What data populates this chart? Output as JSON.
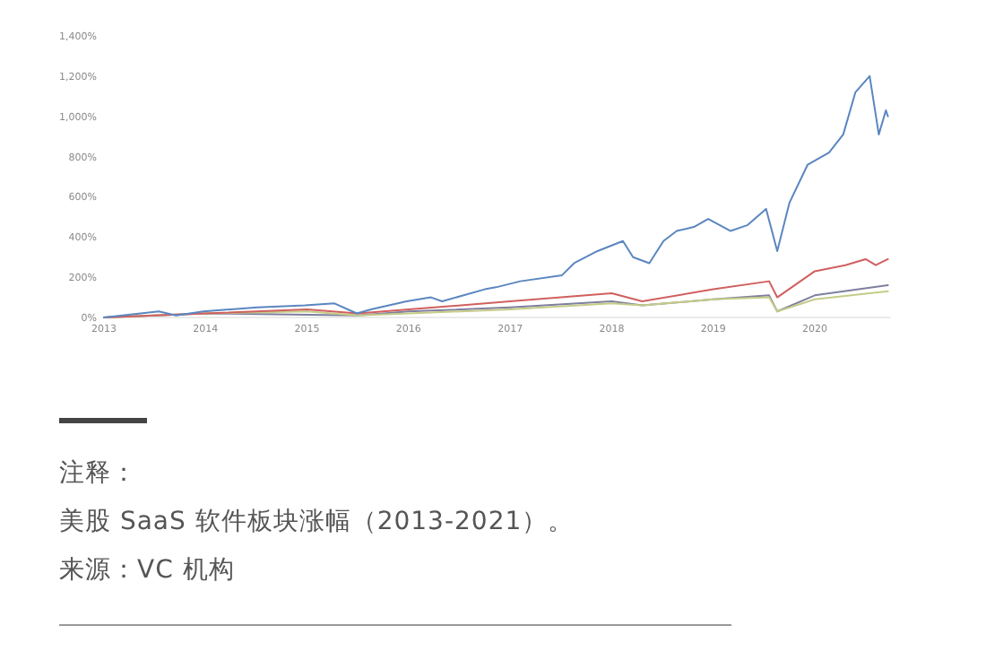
{
  "chart_data": {
    "type": "line",
    "xlim": [
      2013,
      2020.75
    ],
    "xticks": [
      2013,
      2014,
      2015,
      2016,
      2017,
      2018,
      2019,
      2020
    ],
    "ylim": [
      0,
      1400
    ],
    "yticks": [
      {
        "value": 0,
        "label": "0%"
      },
      {
        "value": 200,
        "label": "200%"
      },
      {
        "value": 400,
        "label": "400%"
      },
      {
        "value": 600,
        "label": "600%"
      },
      {
        "value": 800,
        "label": "800%"
      },
      {
        "value": 1000,
        "label": "1,000%"
      },
      {
        "value": 1200,
        "label": "1,200%"
      },
      {
        "value": 1400,
        "label": "1,400%"
      }
    ],
    "grid": false,
    "series": [
      {
        "color": "#5b86c0",
        "x": [
          2013,
          2013.54,
          2013.71,
          2013.98,
          2014.51,
          2014.98,
          2015.27,
          2015.49,
          2015.63,
          2015.98,
          2016.22,
          2016.33,
          2016.75,
          2016.86,
          2017.1,
          2017.51,
          2017.63,
          2017.86,
          2018.11,
          2018.21,
          2018.37,
          2018.51,
          2018.64,
          2018.81,
          2018.95,
          2019.17,
          2019.34,
          2019.52,
          2019.63,
          2019.75,
          2019.93,
          2020.14,
          2020.28,
          2020.4,
          2020.54,
          2020.63,
          2020.7,
          2020.72
        ],
        "values": [
          0,
          30,
          10,
          30,
          50,
          60,
          70,
          20,
          40,
          80,
          100,
          80,
          140,
          150,
          180,
          210,
          270,
          330,
          380,
          300,
          270,
          380,
          430,
          450,
          490,
          430,
          460,
          540,
          330,
          570,
          760,
          820,
          910,
          1120,
          1200,
          910,
          1030,
          1000
        ]
      },
      {
        "color": "#d0605f",
        "x": [
          2013,
          2014,
          2015,
          2015.5,
          2016,
          2017,
          2018,
          2018.3,
          2019,
          2019.55,
          2019.63,
          2020,
          2020.3,
          2020.5,
          2020.6,
          2020.72
        ],
        "values": [
          0,
          20,
          40,
          20,
          40,
          80,
          120,
          80,
          140,
          180,
          100,
          230,
          260,
          290,
          260,
          290
        ]
      },
      {
        "color": "#c5cc86",
        "x": [
          2013,
          2014,
          2015,
          2015.5,
          2016,
          2017,
          2018,
          2018.3,
          2019,
          2019.55,
          2019.63,
          2020,
          2020.72
        ],
        "values": [
          0,
          20,
          30,
          10,
          20,
          40,
          70,
          60,
          90,
          100,
          30,
          90,
          130
        ]
      },
      {
        "color": "#7f7f9f",
        "x": [
          2013,
          2014,
          2015.5,
          2016,
          2017,
          2018,
          2018.3,
          2019,
          2019.55,
          2019.63,
          2020,
          2020.72
        ],
        "values": [
          0,
          20,
          10,
          30,
          50,
          80,
          60,
          90,
          110,
          30,
          110,
          160
        ]
      }
    ],
    "annotations": [
      "注释：",
      "美股 SaaS 软件板块涨幅（2013-2021）。",
      "来源：VC 机构"
    ]
  }
}
